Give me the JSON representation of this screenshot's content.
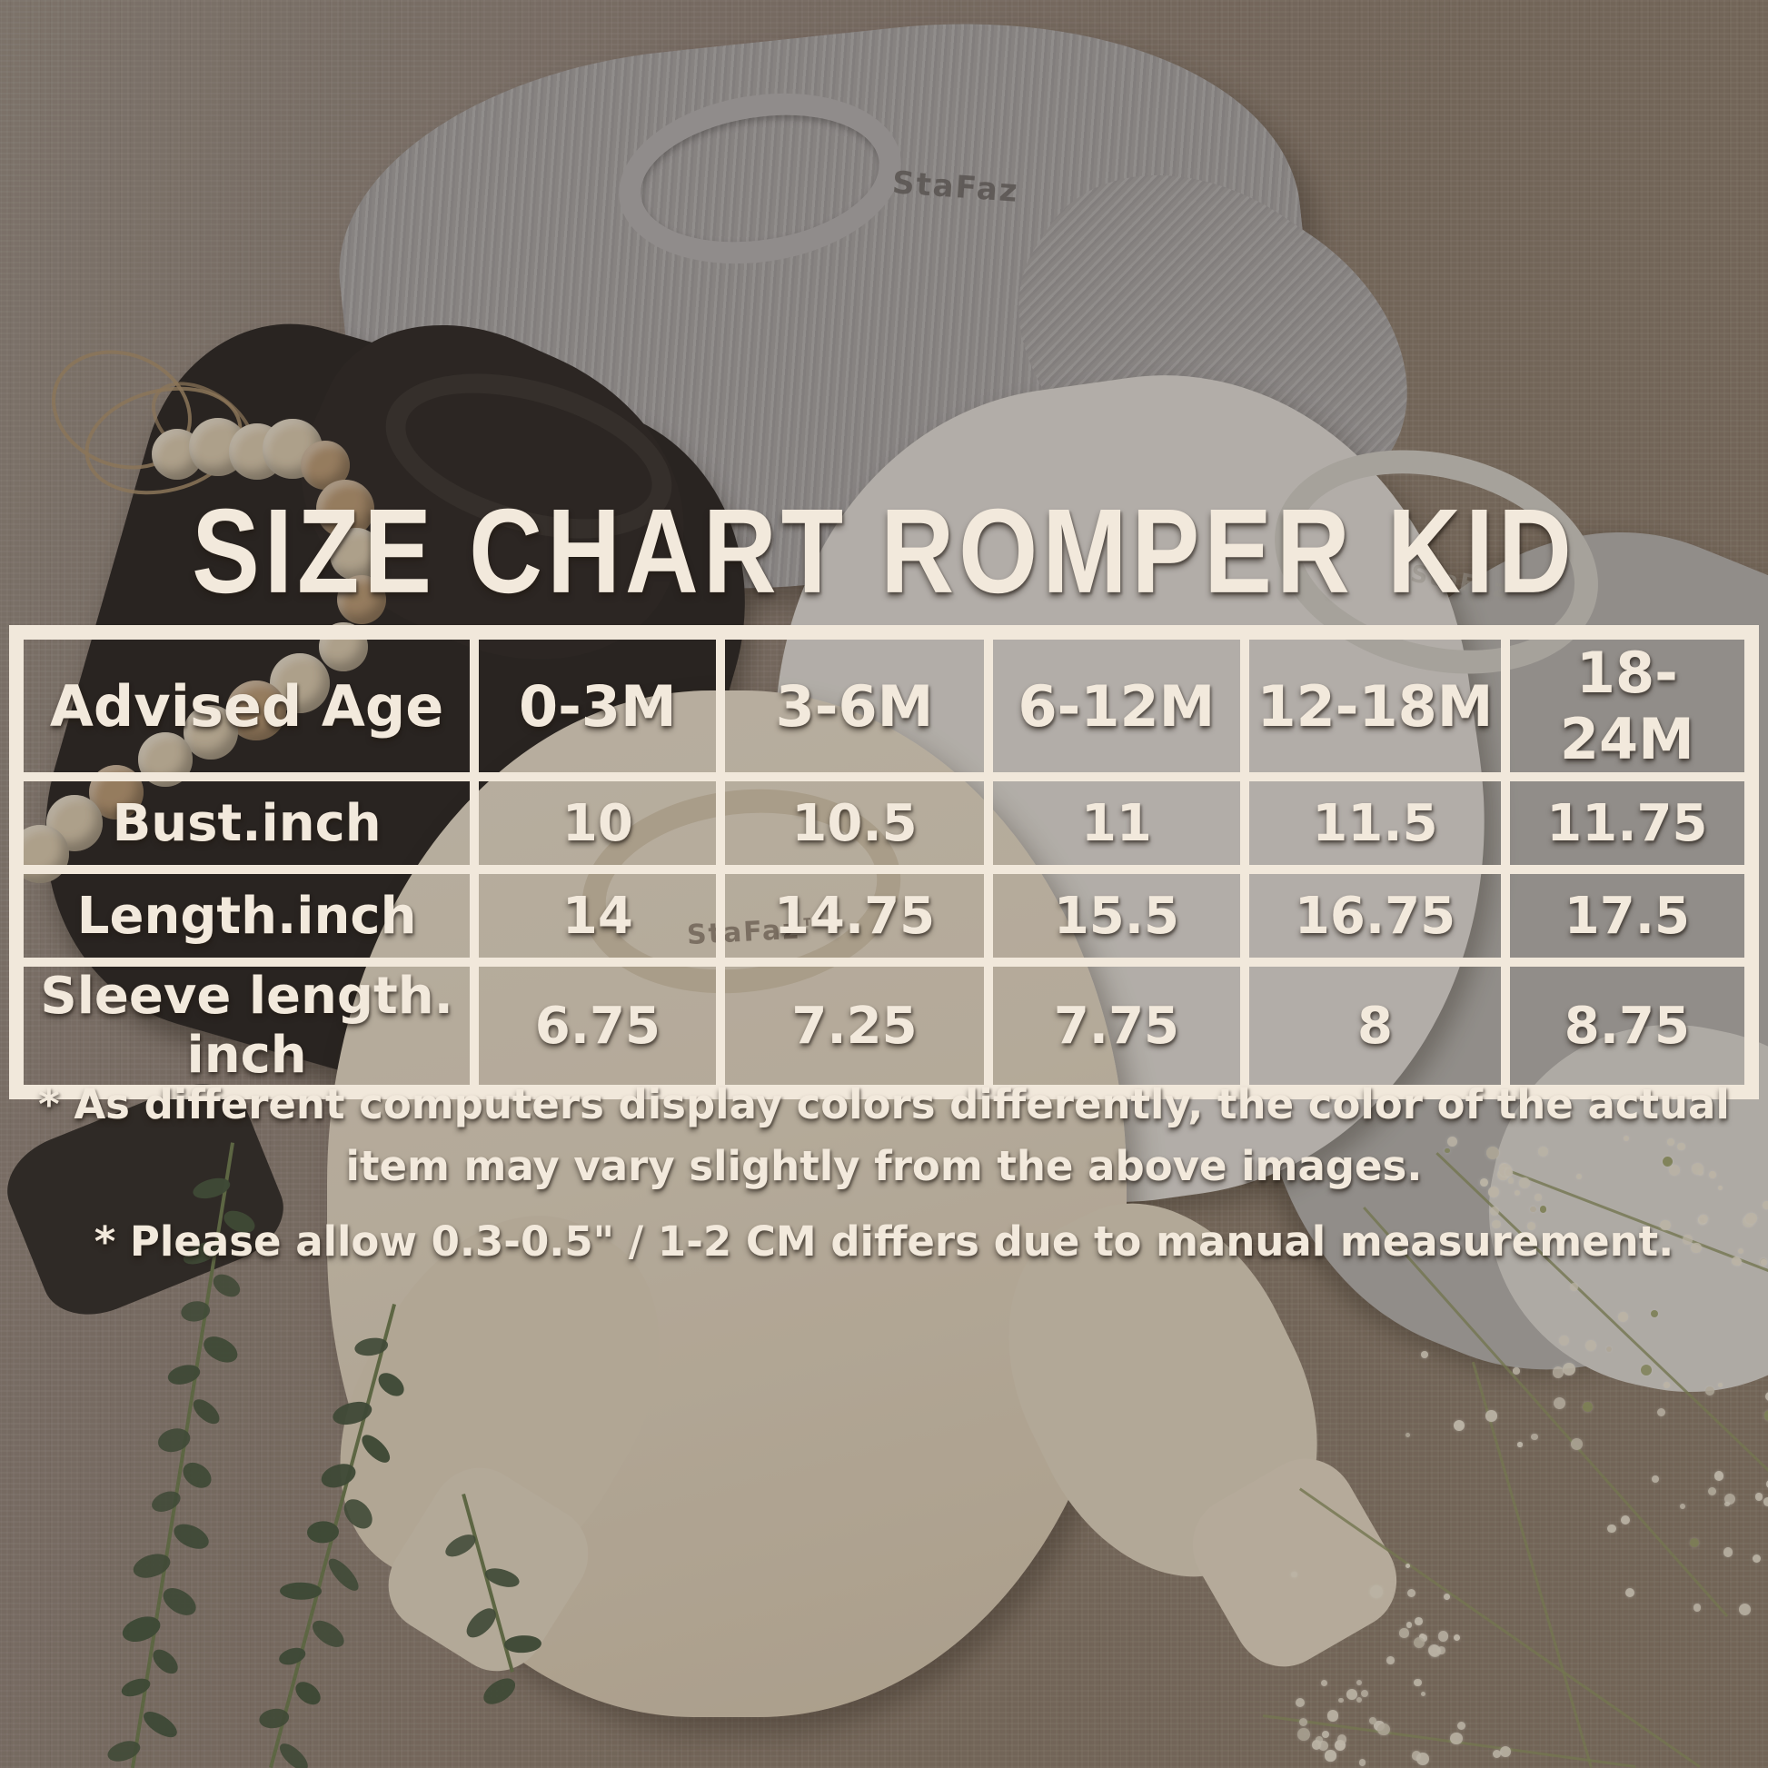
{
  "title": "SIZE CHART ROMPER KID",
  "table": {
    "header": [
      "Advised Age",
      "0-3M",
      "3-6M",
      "6-12M",
      "12-18M",
      "18-24M"
    ],
    "rows": [
      {
        "label": "Bust.inch",
        "values": [
          "10",
          "10.5",
          "11",
          "11.5",
          "11.75"
        ]
      },
      {
        "label": "Length.inch",
        "values": [
          "14",
          "14.75",
          "15.5",
          "16.75",
          "17.5"
        ]
      },
      {
        "label": "Sleeve length. inch",
        "values": [
          "6.75",
          "7.25",
          "7.75",
          "8",
          "8.75"
        ]
      }
    ]
  },
  "notes": [
    "* As different computers display colors differently, the color of the actual item may vary slightly from the above images.",
    "* Please allow 0.3-0.5\" / 1-2 CM differs due to manual measurement."
  ],
  "brand": {
    "gray_neck_label": "StaFaz",
    "white_neck_label": "StaFaz",
    "cream_neck_label": "StaFaz™"
  },
  "colors": {
    "table_border": "#f1e8db",
    "overlay_text": "#f2e9dc",
    "linen_background": "#8d7f72",
    "gray_romper": "#a6a3a4",
    "black_romper": "#2b2725",
    "white_romper": "#dedbd6",
    "light_gray_romper": "#b3b1ae",
    "cream_romper": "#e1d6c3",
    "bead_cream": "#d8c9af",
    "bead_tan": "#b99a76",
    "eucalyptus_green": "#475741",
    "babys_breath_white": "#ebe4d4"
  },
  "chart_data": {
    "type": "table",
    "title": "SIZE CHART ROMPER KID",
    "columns": [
      "Advised Age",
      "0-3M",
      "3-6M",
      "6-12M",
      "12-18M",
      "18-24M"
    ],
    "rows": [
      [
        "Bust.inch",
        10,
        10.5,
        11,
        11.5,
        11.75
      ],
      [
        "Length.inch",
        14,
        14.75,
        15.5,
        16.75,
        17.5
      ],
      [
        "Sleeve length. inch",
        6.75,
        7.25,
        7.75,
        8,
        8.75
      ]
    ],
    "units": "inches",
    "notes": [
      "* As different computers display colors differently, the color of the actual item may vary slightly from the above images.",
      "* Please allow 0.3-0.5\" / 1-2 CM differs due to manual measurement."
    ]
  }
}
